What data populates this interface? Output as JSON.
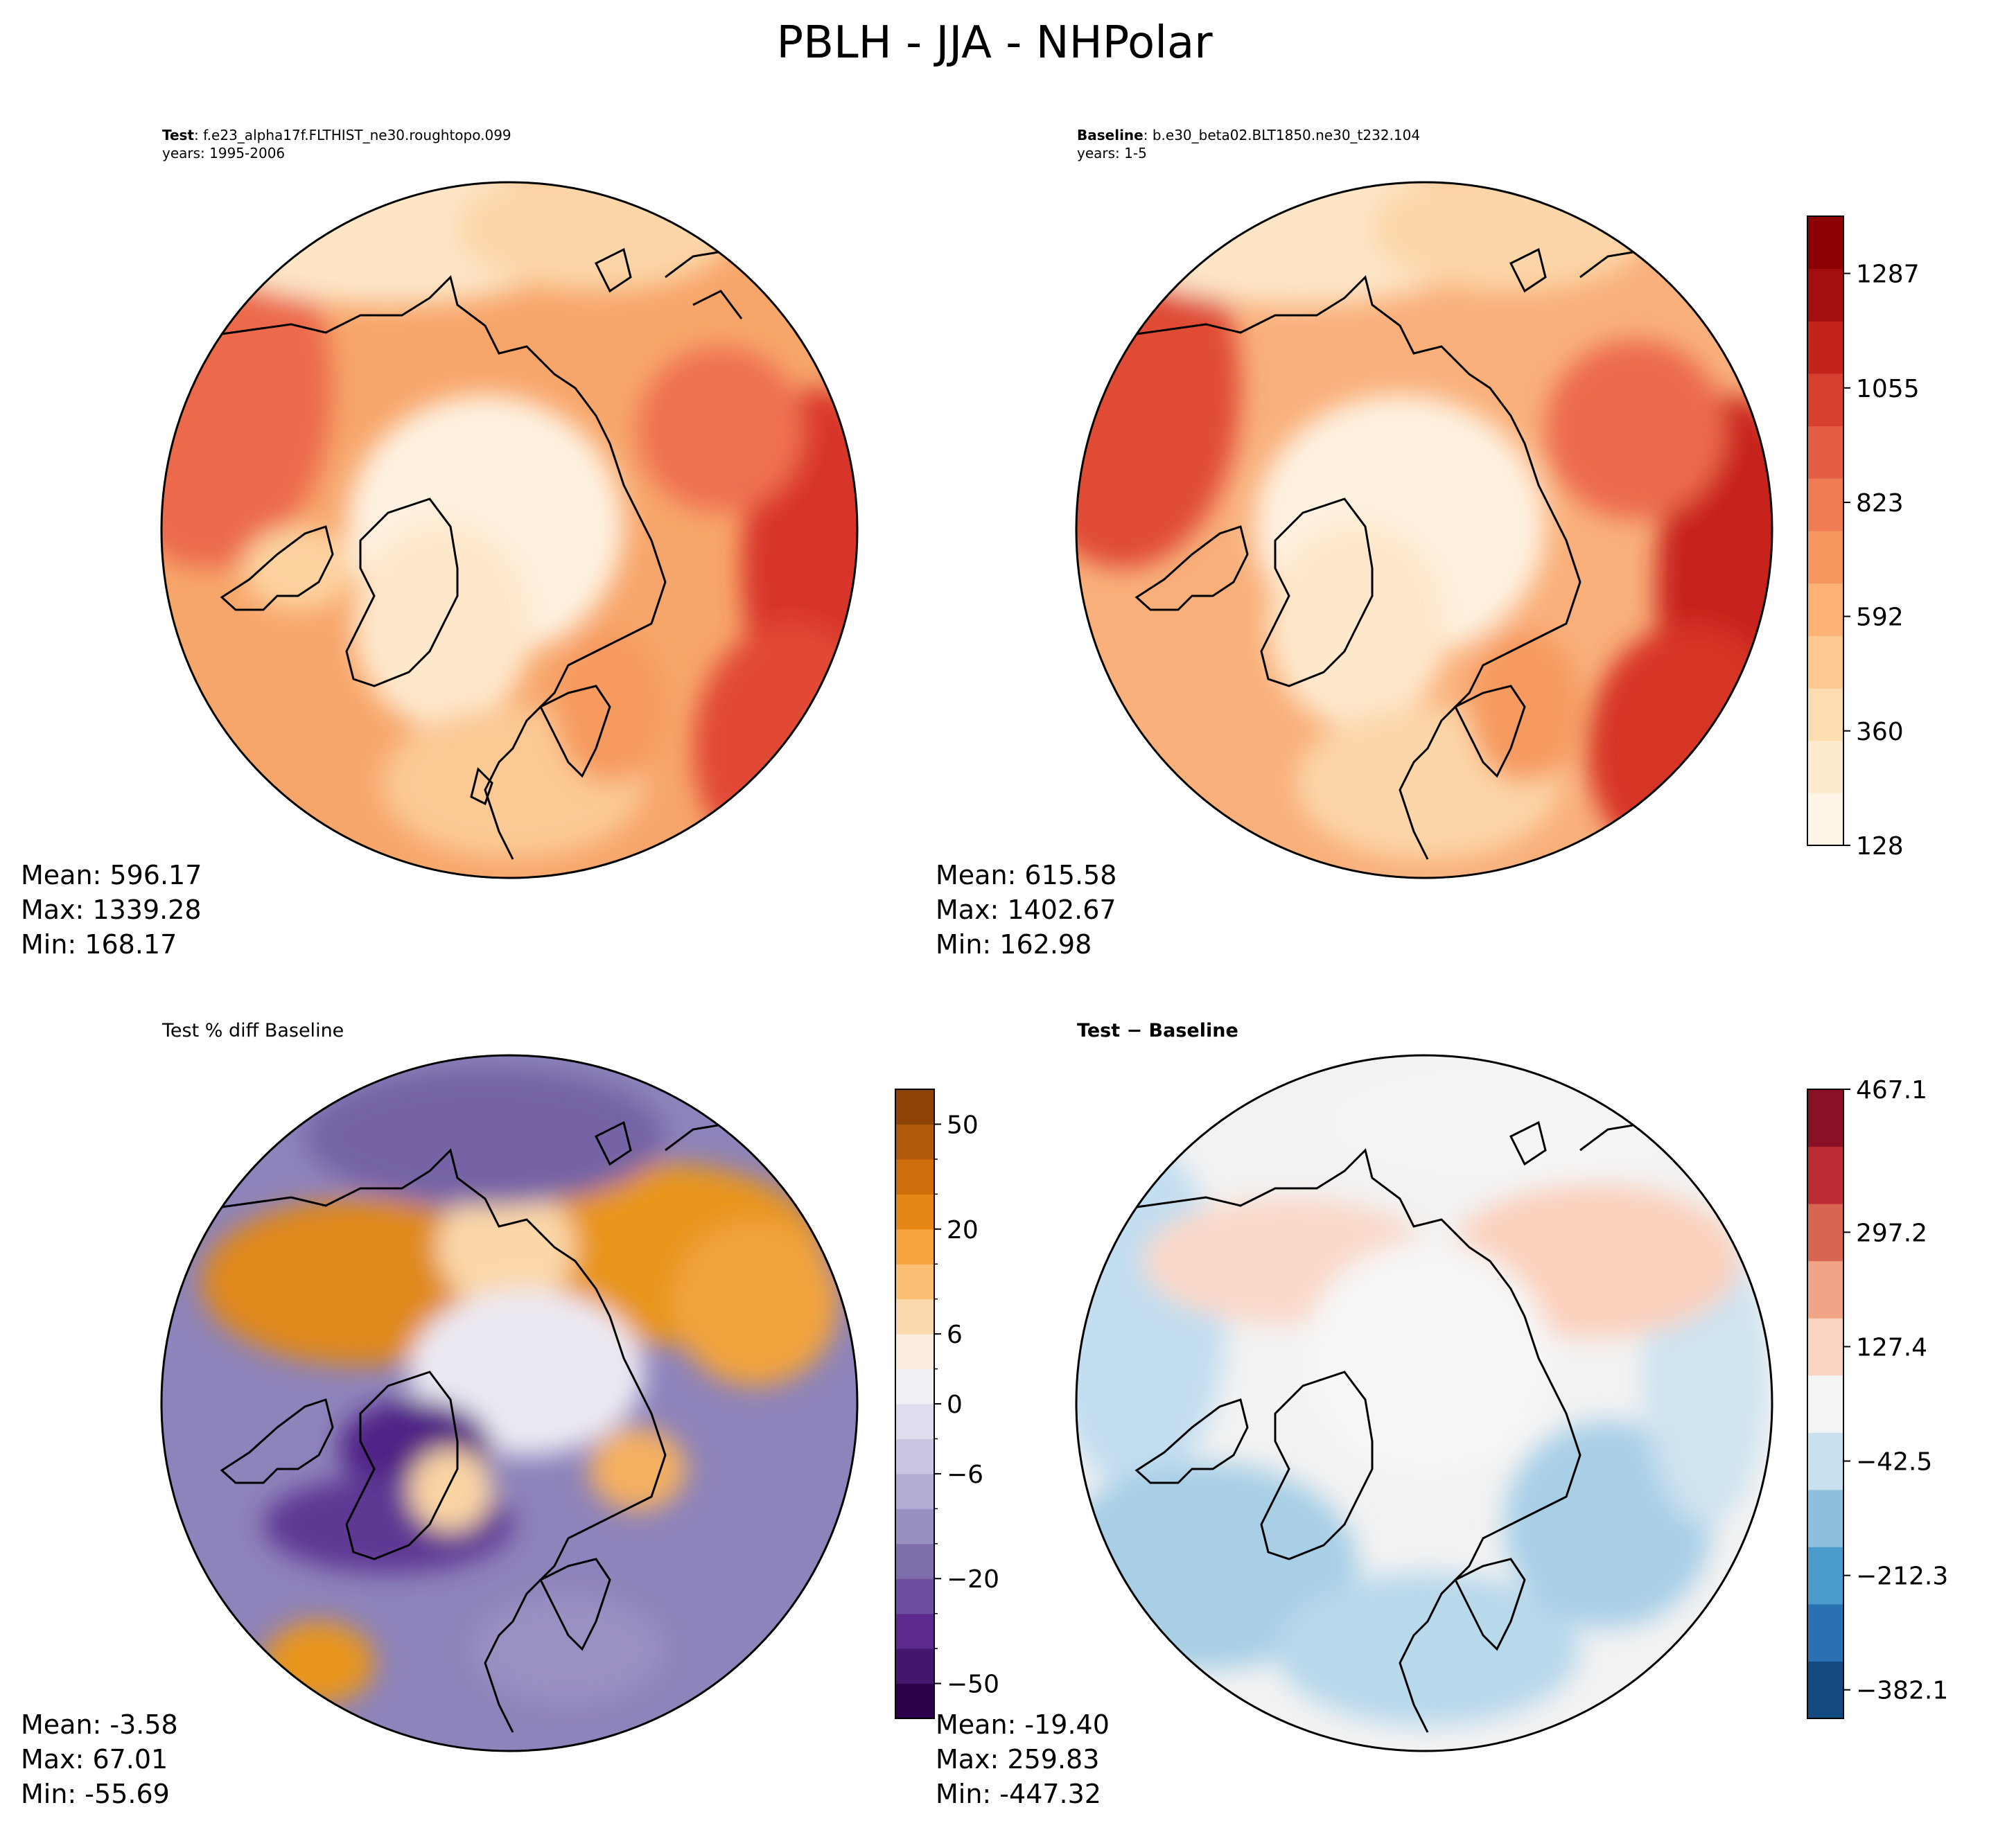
{
  "figure": {
    "title": "PBLH - JJA - NHPolar"
  },
  "panels": [
    {
      "id": "test",
      "label_bold": "Test",
      "label_text": ": f.e23_alpha17f.FLTHIST_ne30.roughtopo.099",
      "years": "years: 1995-2006",
      "stats": {
        "mean": "Mean: 596.17",
        "max": "Max: 1339.28",
        "min": "Min: 168.17"
      }
    },
    {
      "id": "baseline",
      "label_bold": "Baseline",
      "label_text": ": b.e30_beta02.BLT1850.ne30_t232.104",
      "years": "years: 1-5",
      "stats": {
        "mean": "Mean: 615.58",
        "max": "Max: 1402.67",
        "min": "Min: 162.98"
      }
    },
    {
      "id": "pct_diff",
      "label_text": "Test % diff Baseline",
      "stats": {
        "mean": "Mean: -3.58",
        "max": "Max: 67.01",
        "min": "Min: -55.69"
      }
    },
    {
      "id": "diff",
      "label_bold": "Test − Baseline",
      "stats": {
        "mean": "Mean: -19.40",
        "max": "Max: 259.83",
        "min": "Min: -447.32"
      }
    }
  ],
  "chart_data": [
    {
      "type": "heatmap",
      "title": "Test",
      "projection": "north-polar-stereographic",
      "colormap": "OrRd",
      "levels": [
        128,
        360,
        592,
        823,
        1055,
        1287
      ],
      "stats": {
        "mean": 596.17,
        "max": 1339.28,
        "min": 168.17
      }
    },
    {
      "type": "heatmap",
      "title": "Baseline",
      "projection": "north-polar-stereographic",
      "colormap": "OrRd",
      "colorbar_ticks": [
        "128",
        "360",
        "592",
        "823",
        "1055",
        "1287"
      ],
      "colorbar_range": [
        128,
        1403
      ],
      "stats": {
        "mean": 615.58,
        "max": 1402.67,
        "min": 162.98
      }
    },
    {
      "type": "heatmap",
      "title": "Test % diff Baseline",
      "projection": "north-polar-stereographic",
      "colormap": "PuOr_r",
      "colorbar_ticks": [
        "−50",
        "−20",
        "−6",
        "0",
        "6",
        "20",
        "50"
      ],
      "colorbar_colors": [
        "#2d004b",
        "#44176f",
        "#5b2a8c",
        "#6c4f9e",
        "#7f6eac",
        "#9890c1",
        "#b3acd3",
        "#cac7e3",
        "#dfdced",
        "#f0eff4",
        "#faecdc",
        "#fbd9af",
        "#fdbf74",
        "#f6a23e",
        "#e68617",
        "#cf6c0b",
        "#b05909",
        "#8e4307"
      ],
      "stats": {
        "mean": -3.58,
        "max": 67.01,
        "min": -55.69
      }
    },
    {
      "type": "heatmap",
      "title": "Test − Baseline",
      "projection": "north-polar-stereographic",
      "colormap": "RdBu_r",
      "colorbar_ticks": [
        "−382.1",
        "−212.3",
        "−42.5",
        "127.4",
        "297.2",
        "467.1"
      ],
      "colorbar_colors": [
        "#134a7f",
        "#2a71b1",
        "#4a9acc",
        "#8ec0dd",
        "#c9e0ee",
        "#f4f4f4",
        "#fbd4c1",
        "#f2a487",
        "#d86551",
        "#bd2b33",
        "#8a1025"
      ],
      "stats": {
        "mean": -19.4,
        "max": 259.83,
        "min": -447.32
      }
    }
  ]
}
